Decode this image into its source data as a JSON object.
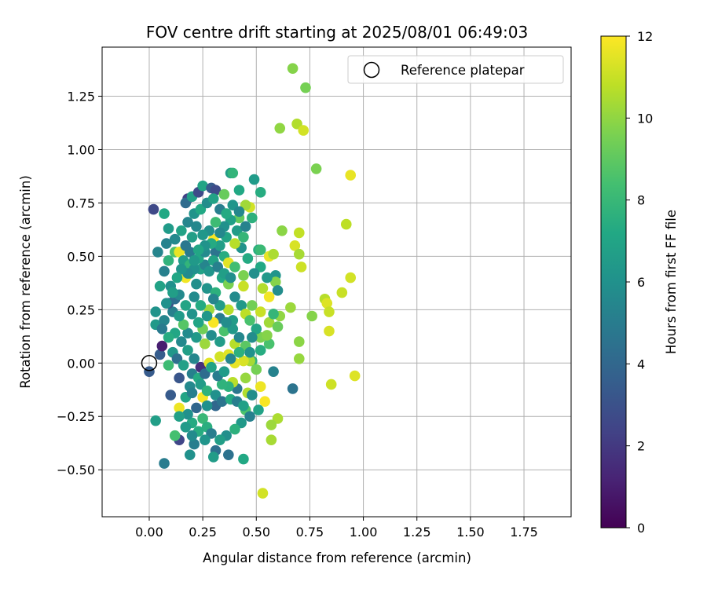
{
  "chart_data": {
    "type": "scatter",
    "title": "FOV centre drift starting at 2025/08/01 06:49:03",
    "xlabel": "Angular distance from reference (arcmin)",
    "ylabel": "Rotation from reference (arcmin)",
    "xlim": [
      -0.22,
      1.97
    ],
    "ylim": [
      -0.72,
      1.48
    ],
    "xticks": [
      "0.00",
      "0.25",
      "0.50",
      "0.75",
      "1.00",
      "1.25",
      "1.50",
      "1.75"
    ],
    "yticks": [
      "−0.50",
      "−0.25",
      "0.00",
      "0.25",
      "0.50",
      "0.75",
      "1.00",
      "1.25"
    ],
    "grid": true,
    "legend": {
      "position": "top-right",
      "entries": [
        "Reference platepar"
      ]
    },
    "colorbar": {
      "label": "Hours from first FF file",
      "range": [
        0,
        12
      ],
      "ticks": [
        "0",
        "2",
        "4",
        "6",
        "8",
        "10",
        "12"
      ],
      "colormap": "viridis"
    },
    "reference_point": {
      "x": 0.0,
      "y": 0.0,
      "label": "Reference platepar"
    },
    "points_format": "[x, y, hours]",
    "points": [
      [
        0.67,
        1.38,
        9.8
      ],
      [
        0.73,
        1.29,
        9.5
      ],
      [
        0.69,
        1.12,
        10.6
      ],
      [
        0.61,
        1.1,
        10.0
      ],
      [
        0.72,
        1.09,
        11.2
      ],
      [
        0.78,
        0.91,
        9.6
      ],
      [
        0.94,
        0.88,
        11.6
      ],
      [
        0.92,
        0.65,
        10.8
      ],
      [
        0.7,
        0.61,
        10.9
      ],
      [
        0.62,
        0.62,
        9.9
      ],
      [
        0.68,
        0.55,
        11.3
      ],
      [
        0.7,
        0.51,
        10.4
      ],
      [
        0.71,
        0.45,
        11.1
      ],
      [
        0.94,
        0.4,
        11.2
      ],
      [
        0.82,
        0.3,
        10.7
      ],
      [
        0.83,
        0.28,
        11.4
      ],
      [
        0.9,
        0.33,
        11.0
      ],
      [
        0.84,
        0.24,
        11.0
      ],
      [
        0.76,
        0.22,
        9.8
      ],
      [
        0.66,
        0.26,
        10.2
      ],
      [
        0.7,
        0.1,
        9.9
      ],
      [
        0.84,
        0.15,
        11.3
      ],
      [
        0.7,
        0.02,
        10.1
      ],
      [
        0.85,
        -0.1,
        11.1
      ],
      [
        0.96,
        -0.06,
        11.4
      ],
      [
        0.67,
        -0.12,
        4.6
      ],
      [
        0.58,
        -0.04,
        5.3
      ],
      [
        0.6,
        -0.26,
        10.5
      ],
      [
        0.57,
        -0.29,
        10.2
      ],
      [
        0.57,
        -0.36,
        10.4
      ],
      [
        0.53,
        -0.61,
        11.2
      ],
      [
        0.52,
        -0.11,
        11.7
      ],
      [
        0.54,
        -0.18,
        11.9
      ],
      [
        0.46,
        -0.14,
        10.6
      ],
      [
        0.45,
        -0.22,
        8.6
      ],
      [
        0.44,
        -0.45,
        7.2
      ],
      [
        0.37,
        -0.43,
        4.5
      ],
      [
        0.31,
        -0.41,
        4.4
      ],
      [
        0.3,
        -0.44,
        6.6
      ],
      [
        0.21,
        -0.38,
        5.1
      ],
      [
        0.19,
        -0.43,
        6.0
      ],
      [
        0.14,
        -0.36,
        2.5
      ],
      [
        0.12,
        -0.34,
        8.4
      ],
      [
        0.07,
        -0.47,
        5.0
      ],
      [
        0.03,
        -0.27,
        6.7
      ],
      [
        0.25,
        -0.16,
        11.9
      ],
      [
        0.14,
        -0.21,
        11.7
      ],
      [
        0.1,
        -0.15,
        3.4
      ],
      [
        0.0,
        -0.04,
        3.4
      ],
      [
        0.05,
        0.04,
        3.5
      ],
      [
        0.06,
        0.08,
        1.0
      ],
      [
        0.03,
        0.18,
        6.4
      ],
      [
        0.03,
        0.24,
        6.1
      ],
      [
        0.04,
        0.52,
        5.4
      ],
      [
        0.02,
        0.72,
        2.6
      ],
      [
        0.07,
        0.7,
        7.2
      ],
      [
        0.08,
        0.56,
        5.3
      ],
      [
        0.09,
        0.63,
        6.5
      ],
      [
        0.12,
        0.52,
        8.6
      ],
      [
        0.14,
        0.52,
        11.6
      ],
      [
        0.17,
        0.54,
        11.7
      ],
      [
        0.19,
        0.52,
        4.9
      ],
      [
        0.18,
        0.77,
        2.3
      ],
      [
        0.17,
        0.75,
        4.2
      ],
      [
        0.2,
        0.78,
        6.8
      ],
      [
        0.23,
        0.8,
        2.7
      ],
      [
        0.25,
        0.83,
        7.0
      ],
      [
        0.29,
        0.82,
        3.4
      ],
      [
        0.31,
        0.81,
        2.7
      ],
      [
        0.35,
        0.79,
        9.2
      ],
      [
        0.38,
        0.89,
        6.6
      ],
      [
        0.39,
        0.89,
        7.8
      ],
      [
        0.42,
        0.81,
        7.2
      ],
      [
        0.49,
        0.86,
        6.5
      ],
      [
        0.52,
        0.8,
        7.4
      ],
      [
        0.47,
        0.73,
        11.2
      ],
      [
        0.45,
        0.74,
        10.3
      ],
      [
        0.51,
        0.53,
        7.5
      ],
      [
        0.52,
        0.53,
        8.1
      ],
      [
        0.56,
        0.5,
        11.6
      ],
      [
        0.58,
        0.51,
        10.5
      ],
      [
        0.59,
        0.41,
        6.2
      ],
      [
        0.59,
        0.38,
        9.8
      ],
      [
        0.6,
        0.34,
        5.8
      ],
      [
        0.56,
        0.31,
        11.8
      ],
      [
        0.53,
        0.35,
        10.6
      ],
      [
        0.48,
        0.27,
        9.4
      ],
      [
        0.52,
        0.24,
        11.0
      ],
      [
        0.56,
        0.19,
        10.3
      ],
      [
        0.61,
        0.22,
        10.0
      ],
      [
        0.6,
        0.17,
        9.2
      ],
      [
        0.56,
        0.09,
        8.5
      ],
      [
        0.52,
        0.12,
        9.6
      ],
      [
        0.48,
        0.01,
        7.8
      ],
      [
        0.47,
        0.01,
        10.4
      ],
      [
        0.44,
        0.01,
        11.3
      ],
      [
        0.45,
        -0.07,
        10.1
      ],
      [
        0.41,
        -0.12,
        4.7
      ],
      [
        0.39,
        -0.09,
        10.7
      ],
      [
        0.37,
        -0.11,
        7.6
      ],
      [
        0.34,
        -0.1,
        7.7
      ],
      [
        0.31,
        -0.2,
        4.0
      ],
      [
        0.27,
        -0.2,
        6.0
      ],
      [
        0.25,
        -0.26,
        8.0
      ],
      [
        0.27,
        -0.3,
        7.5
      ],
      [
        0.2,
        -0.28,
        7.3
      ],
      [
        0.18,
        -0.24,
        6.0
      ],
      [
        0.14,
        -0.25,
        6.8
      ],
      [
        0.22,
        -0.21,
        4.0
      ],
      [
        0.14,
        -0.07,
        3.2
      ],
      [
        0.2,
        -0.05,
        5.2
      ],
      [
        0.24,
        -0.02,
        1.6
      ],
      [
        0.28,
        0.0,
        11.5
      ],
      [
        0.33,
        0.03,
        11.2
      ],
      [
        0.37,
        0.04,
        11.5
      ],
      [
        0.4,
        0.0,
        11.6
      ],
      [
        0.4,
        0.09,
        10.7
      ],
      [
        0.35,
        0.15,
        8.5
      ],
      [
        0.33,
        0.1,
        6.6
      ],
      [
        0.29,
        0.13,
        5.8
      ],
      [
        0.25,
        0.16,
        9.4
      ],
      [
        0.26,
        0.09,
        10.2
      ],
      [
        0.22,
        0.12,
        6.4
      ],
      [
        0.18,
        0.14,
        5.7
      ],
      [
        0.16,
        0.18,
        8.8
      ],
      [
        0.11,
        0.24,
        5.2
      ],
      [
        0.09,
        0.28,
        3.0
      ],
      [
        0.12,
        0.3,
        4.3
      ],
      [
        0.1,
        0.36,
        6.0
      ],
      [
        0.14,
        0.32,
        5.6
      ],
      [
        0.17,
        0.4,
        11.8
      ],
      [
        0.19,
        0.42,
        7.5
      ],
      [
        0.22,
        0.37,
        5.9
      ],
      [
        0.24,
        0.44,
        6.9
      ],
      [
        0.26,
        0.46,
        5.4
      ],
      [
        0.28,
        0.43,
        6.2
      ],
      [
        0.31,
        0.52,
        4.6
      ],
      [
        0.3,
        0.58,
        11.9
      ],
      [
        0.33,
        0.55,
        6.7
      ],
      [
        0.35,
        0.5,
        7.4
      ],
      [
        0.37,
        0.47,
        11.5
      ],
      [
        0.4,
        0.45,
        8.3
      ],
      [
        0.44,
        0.41,
        9.6
      ],
      [
        0.44,
        0.36,
        11.0
      ],
      [
        0.4,
        0.31,
        5.7
      ],
      [
        0.37,
        0.25,
        10.7
      ],
      [
        0.39,
        0.2,
        6.6
      ],
      [
        0.33,
        0.21,
        5.0
      ],
      [
        0.3,
        0.19,
        11.9
      ],
      [
        0.28,
        0.25,
        10.2
      ],
      [
        0.24,
        0.27,
        7.3
      ],
      [
        0.21,
        0.31,
        5.7
      ],
      [
        0.27,
        0.35,
        6.1
      ],
      [
        0.31,
        0.33,
        7.6
      ],
      [
        0.34,
        0.4,
        7.1
      ],
      [
        0.37,
        0.37,
        9.6
      ],
      [
        0.41,
        0.62,
        6.6
      ],
      [
        0.44,
        0.59,
        7.9
      ],
      [
        0.45,
        0.64,
        5.3
      ],
      [
        0.48,
        0.68,
        7.6
      ],
      [
        0.42,
        0.68,
        9.1
      ],
      [
        0.38,
        0.67,
        6.8
      ],
      [
        0.35,
        0.64,
        6.0
      ],
      [
        0.31,
        0.66,
        8.2
      ],
      [
        0.28,
        0.62,
        5.9
      ],
      [
        0.25,
        0.6,
        6.3
      ],
      [
        0.22,
        0.64,
        5.5
      ],
      [
        0.2,
        0.59,
        6.7
      ],
      [
        0.17,
        0.55,
        4.8
      ],
      [
        0.16,
        0.48,
        6.6
      ],
      [
        0.19,
        0.46,
        7.8
      ],
      [
        0.21,
        0.44,
        6.0
      ],
      [
        0.23,
        0.49,
        7.1
      ],
      [
        0.26,
        0.52,
        5.7
      ],
      [
        0.3,
        0.48,
        6.9
      ],
      [
        0.32,
        0.45,
        5.2
      ],
      [
        0.35,
        0.42,
        6.7
      ],
      [
        0.38,
        0.4,
        5.9
      ],
      [
        0.43,
        0.27,
        6.4
      ],
      [
        0.45,
        0.23,
        10.8
      ],
      [
        0.47,
        0.2,
        8.5
      ],
      [
        0.5,
        0.16,
        7.0
      ],
      [
        0.48,
        0.12,
        5.8
      ],
      [
        0.45,
        0.08,
        8.9
      ],
      [
        0.42,
        0.12,
        5.5
      ],
      [
        0.39,
        0.16,
        6.4
      ],
      [
        0.36,
        0.19,
        5.8
      ],
      [
        0.33,
        0.27,
        6.6
      ],
      [
        0.3,
        0.3,
        5.4
      ],
      [
        0.27,
        0.22,
        6.3
      ],
      [
        0.23,
        0.19,
        7.0
      ],
      [
        0.2,
        0.23,
        6.1
      ],
      [
        0.17,
        0.27,
        7.0
      ],
      [
        0.14,
        0.22,
        6.5
      ],
      [
        0.12,
        0.14,
        7.1
      ],
      [
        0.15,
        0.1,
        5.6
      ],
      [
        0.18,
        0.06,
        6.7
      ],
      [
        0.21,
        0.02,
        5.5
      ],
      [
        0.23,
        -0.07,
        7.3
      ],
      [
        0.26,
        -0.05,
        4.2
      ],
      [
        0.29,
        -0.02,
        6.9
      ],
      [
        0.32,
        -0.06,
        5.0
      ],
      [
        0.35,
        -0.04,
        6.5
      ],
      [
        0.38,
        0.02,
        5.4
      ],
      [
        0.42,
        0.05,
        7.6
      ],
      [
        0.47,
        0.05,
        6.0
      ],
      [
        0.5,
        -0.03,
        9.5
      ],
      [
        0.52,
        0.06,
        7.4
      ],
      [
        0.55,
        0.13,
        9.8
      ],
      [
        0.58,
        0.23,
        7.9
      ],
      [
        0.55,
        0.4,
        6.4
      ],
      [
        0.52,
        0.45,
        7.2
      ],
      [
        0.49,
        0.42,
        5.9
      ],
      [
        0.46,
        0.49,
        7.3
      ],
      [
        0.43,
        0.54,
        6.1
      ],
      [
        0.4,
        0.56,
        10.7
      ],
      [
        0.36,
        0.59,
        7.0
      ],
      [
        0.33,
        0.61,
        5.5
      ],
      [
        0.29,
        0.56,
        7.3
      ],
      [
        0.26,
        0.55,
        6.1
      ],
      [
        0.23,
        0.53,
        7.1
      ],
      [
        0.21,
        0.48,
        6.4
      ],
      [
        0.18,
        0.42,
        5.7
      ],
      [
        0.15,
        0.44,
        6.2
      ],
      [
        0.13,
        0.4,
        7.1
      ],
      [
        0.11,
        0.33,
        6.7
      ],
      [
        0.08,
        0.28,
        6.0
      ],
      [
        0.07,
        0.2,
        5.4
      ],
      [
        0.09,
        0.12,
        7.4
      ],
      [
        0.11,
        0.05,
        6.3
      ],
      [
        0.13,
        0.02,
        4.4
      ],
      [
        0.16,
        -0.01,
        6.8
      ],
      [
        0.19,
        -0.11,
        5.6
      ],
      [
        0.17,
        -0.16,
        7.0
      ],
      [
        0.2,
        -0.14,
        5.2
      ],
      [
        0.24,
        -0.1,
        6.6
      ],
      [
        0.27,
        -0.13,
        7.7
      ],
      [
        0.31,
        -0.15,
        6.0
      ],
      [
        0.34,
        -0.18,
        4.6
      ],
      [
        0.38,
        -0.17,
        7.3
      ],
      [
        0.41,
        -0.18,
        5.1
      ],
      [
        0.44,
        -0.2,
        6.8
      ],
      [
        0.48,
        -0.15,
        5.8
      ],
      [
        0.51,
        -0.22,
        6.9
      ],
      [
        0.47,
        -0.25,
        5.2
      ],
      [
        0.43,
        -0.28,
        6.4
      ],
      [
        0.4,
        -0.31,
        7.6
      ],
      [
        0.36,
        -0.34,
        5.9
      ],
      [
        0.33,
        -0.36,
        6.7
      ],
      [
        0.29,
        -0.33,
        5.1
      ],
      [
        0.26,
        -0.36,
        6.2
      ],
      [
        0.23,
        -0.32,
        7.4
      ],
      [
        0.2,
        -0.34,
        5.7
      ],
      [
        0.17,
        -0.3,
        6.5
      ],
      [
        0.09,
        -0.01,
        8.2
      ],
      [
        0.06,
        0.16,
        4.9
      ],
      [
        0.05,
        0.36,
        6.9
      ],
      [
        0.07,
        0.43,
        5.2
      ],
      [
        0.09,
        0.48,
        7.7
      ],
      [
        0.12,
        0.58,
        5.6
      ],
      [
        0.15,
        0.62,
        6.9
      ],
      [
        0.18,
        0.66,
        5.4
      ],
      [
        0.21,
        0.7,
        6.1
      ],
      [
        0.24,
        0.72,
        7.2
      ],
      [
        0.27,
        0.75,
        5.8
      ],
      [
        0.3,
        0.77,
        6.9
      ],
      [
        0.33,
        0.72,
        5.1
      ],
      [
        0.36,
        0.7,
        7.3
      ],
      [
        0.39,
        0.74,
        6.2
      ],
      [
        0.42,
        0.71,
        5.5
      ]
    ]
  }
}
